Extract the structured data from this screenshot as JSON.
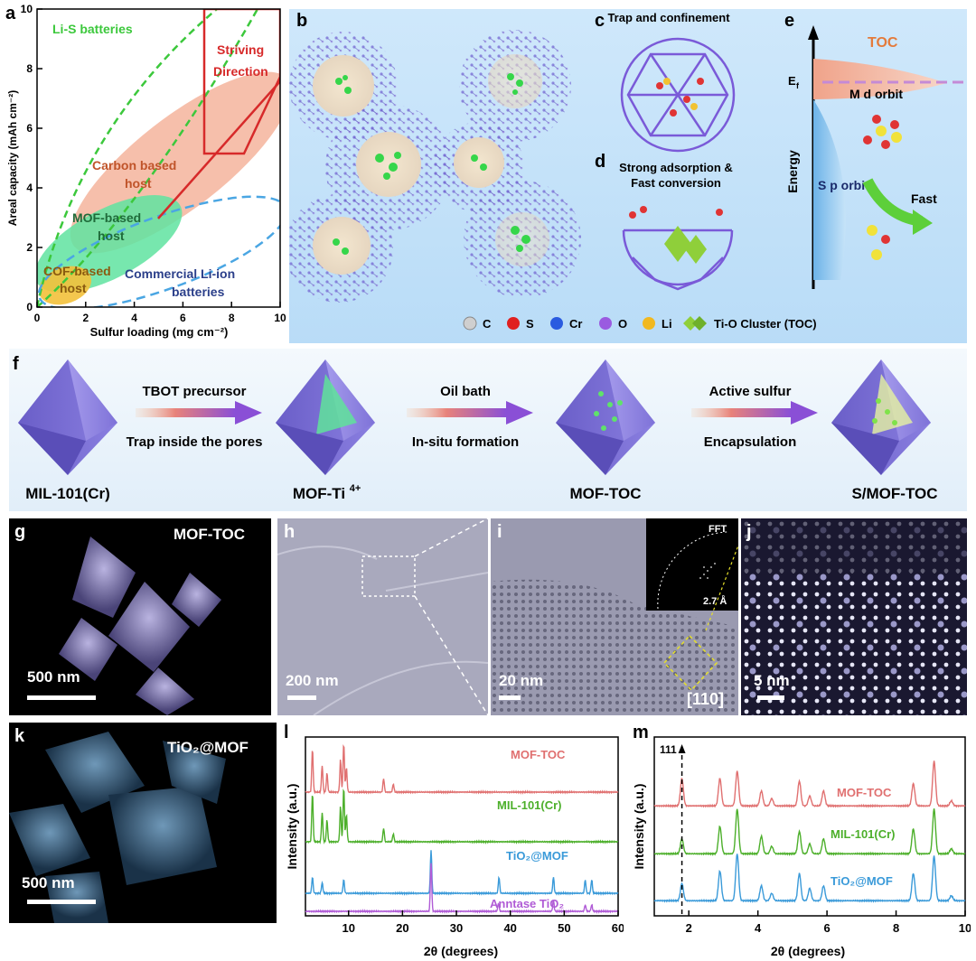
{
  "panels": {
    "a": "a",
    "b": "b",
    "c": "c",
    "d": "d",
    "e": "e",
    "f": "f",
    "g": "g",
    "h": "h",
    "i": "i",
    "j": "j",
    "k": "k",
    "l": "l",
    "m": "m"
  },
  "panel_a": {
    "ylabel": "Areal capacity (mAh cm⁻²)",
    "xlabel": "Sulfur loading (mg cm⁻²)",
    "xticks": [
      "0",
      "2",
      "4",
      "6",
      "8",
      "10"
    ],
    "yticks": [
      "0",
      "2",
      "4",
      "6",
      "8",
      "10"
    ],
    "regions": {
      "lis": "Li-S batteries",
      "striving1": "Striving",
      "striving2": "Direction",
      "carbon1": "Carbon based",
      "carbon2": "host",
      "mof1": "MOF-based",
      "mof2": "host",
      "cof1": "COF-based",
      "cof2": "host",
      "comm1": "Commercial Li-ion",
      "comm2": "batteries"
    }
  },
  "panel_c": {
    "title": "Trap and confinement"
  },
  "panel_d": {
    "title1": "Strong adsorption &",
    "title2": "Fast conversion"
  },
  "panel_e": {
    "toc": "TOC",
    "ef": "E",
    "ef_sub": "f",
    "md": "M d orbit",
    "sp": "S p orbit",
    "energy": "Energy",
    "fast": "Fast"
  },
  "legend": {
    "c": "C",
    "s": "S",
    "cr": "Cr",
    "o": "O",
    "li": "Li",
    "toc": "Ti-O Cluster (TOC)"
  },
  "panel_f": {
    "step1_top": "TBOT precursor",
    "step1_bot": "Trap inside the pores",
    "step2_top": "Oil bath",
    "step2_bot": "In-situ formation",
    "step3_top": "Active sulfur",
    "step3_bot": "Encapsulation",
    "m1": "MIL-101(Cr)",
    "m2": "MOF-Ti",
    "m2_sup": "4+",
    "m3": "MOF-TOC",
    "m4": "S/MOF-TOC"
  },
  "panel_g": {
    "title": "MOF-TOC",
    "scale": "500 nm"
  },
  "panel_h": {
    "scale": "200 nm"
  },
  "panel_i": {
    "scale": "20 nm",
    "fft": "FFT",
    "dist": "2.7 Å",
    "zone": "[110]"
  },
  "panel_j": {
    "scale": "5 nm"
  },
  "panel_k": {
    "title": "TiO₂@MOF",
    "scale": "500 nm"
  },
  "colors": {
    "mof_toc": "#e07070",
    "mil": "#4caf2a",
    "tio2mof": "#3a9ad9",
    "anatase": "#b05bd6"
  },
  "chart_data": [
    {
      "type": "line",
      "id": "l",
      "xlabel": "2θ (degrees)",
      "ylabel": "Intensity (a.u.)",
      "xlim": [
        2,
        60
      ],
      "xticks": [
        "10",
        "20",
        "30",
        "40",
        "50",
        "60"
      ],
      "series": [
        {
          "name": "MOF-TOC",
          "peaks": [
            [
              3.3,
              0.8
            ],
            [
              5.1,
              0.5
            ],
            [
              6.0,
              0.35
            ],
            [
              8.5,
              0.6
            ],
            [
              9.1,
              0.9
            ],
            [
              9.6,
              0.45
            ],
            [
              16.5,
              0.25
            ],
            [
              18.3,
              0.15
            ]
          ]
        },
        {
          "name": "MIL-101(Cr)",
          "peaks": [
            [
              3.3,
              0.9
            ],
            [
              5.1,
              0.55
            ],
            [
              6.0,
              0.4
            ],
            [
              8.5,
              0.65
            ],
            [
              9.1,
              1.0
            ],
            [
              9.6,
              0.5
            ],
            [
              16.5,
              0.25
            ],
            [
              18.3,
              0.15
            ]
          ]
        },
        {
          "name": "TiO₂@MOF",
          "peaks": [
            [
              3.3,
              0.3
            ],
            [
              5.1,
              0.2
            ],
            [
              9.1,
              0.25
            ],
            [
              25.3,
              0.8
            ],
            [
              37.9,
              0.3
            ],
            [
              48.0,
              0.3
            ],
            [
              53.9,
              0.25
            ],
            [
              55.1,
              0.25
            ]
          ]
        },
        {
          "name": "Anntase TiO₂",
          "peaks": [
            [
              25.3,
              0.9
            ],
            [
              37.8,
              0.15
            ],
            [
              48.0,
              0.2
            ],
            [
              53.9,
              0.12
            ],
            [
              55.1,
              0.12
            ]
          ]
        }
      ]
    },
    {
      "type": "line",
      "id": "m",
      "xlabel": "2θ (degrees)",
      "ylabel": "Intensity (a.u.)",
      "xlim": [
        1,
        10
      ],
      "xticks": [
        "2",
        "4",
        "6",
        "8",
        "10"
      ],
      "annotation": "111",
      "annotation_x": 1.8,
      "series": [
        {
          "name": "MOF-TOC",
          "peaks": [
            [
              1.8,
              0.55
            ],
            [
              2.9,
              0.55
            ],
            [
              3.4,
              0.7
            ],
            [
              4.1,
              0.3
            ],
            [
              4.4,
              0.15
            ],
            [
              5.2,
              0.5
            ],
            [
              5.5,
              0.2
            ],
            [
              5.9,
              0.3
            ],
            [
              8.5,
              0.45
            ],
            [
              9.1,
              0.9
            ],
            [
              9.6,
              0.1
            ]
          ]
        },
        {
          "name": "MIL-101(Cr)",
          "peaks": [
            [
              1.8,
              0.3
            ],
            [
              2.9,
              0.55
            ],
            [
              3.4,
              0.9
            ],
            [
              4.1,
              0.35
            ],
            [
              4.4,
              0.15
            ],
            [
              5.2,
              0.45
            ],
            [
              5.5,
              0.2
            ],
            [
              5.9,
              0.3
            ],
            [
              8.5,
              0.5
            ],
            [
              9.1,
              0.9
            ],
            [
              9.6,
              0.1
            ]
          ]
        },
        {
          "name": "TiO₂@MOF",
          "peaks": [
            [
              1.8,
              0.35
            ],
            [
              2.9,
              0.6
            ],
            [
              3.4,
              0.95
            ],
            [
              4.1,
              0.3
            ],
            [
              4.4,
              0.15
            ],
            [
              5.2,
              0.55
            ],
            [
              5.5,
              0.25
            ],
            [
              5.9,
              0.3
            ],
            [
              8.5,
              0.55
            ],
            [
              9.1,
              0.9
            ],
            [
              9.6,
              0.1
            ]
          ]
        }
      ]
    }
  ]
}
